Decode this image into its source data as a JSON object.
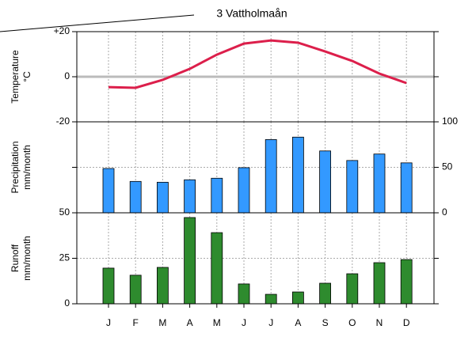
{
  "chart_data": [
    {
      "type": "line",
      "title": "3 Vattholmaån",
      "ylabel": [
        "Temperature",
        "°C"
      ],
      "color": "#dc1f4b",
      "values": [
        -4.6,
        -4.9,
        -1.4,
        3.5,
        9.8,
        14.7,
        16.1,
        15.1,
        11.2,
        7.0,
        1.4,
        -2.8
      ],
      "ylim": [
        -20,
        20
      ],
      "yticks": [
        -20,
        0,
        {
          "value": 20,
          "label": "+20"
        }
      ],
      "ytick_side": "left",
      "zero_line": true,
      "grid": true
    },
    {
      "type": "bar",
      "ylabel": [
        "Precipitation",
        "mm/month"
      ],
      "color": "#3399ff",
      "values": [
        48.7,
        34.5,
        33.6,
        36.3,
        38.0,
        49.6,
        80.5,
        83.2,
        68.0,
        57.5,
        64.6,
        54.9
      ],
      "ylim": [
        0,
        100
      ],
      "yticks": [
        0,
        50,
        100
      ],
      "ytick_side": "right",
      "grid": true
    },
    {
      "type": "bar",
      "ylabel": [
        "Runoff",
        "mm/month"
      ],
      "color": "#2e8b2e",
      "categories": [
        "J",
        "F",
        "M",
        "A",
        "M",
        "J",
        "J",
        "A",
        "S",
        "O",
        "N",
        "D"
      ],
      "values": [
        19.6,
        15.7,
        20.0,
        47.4,
        39.1,
        10.9,
        5.2,
        6.5,
        11.3,
        16.5,
        22.6,
        24.3
      ],
      "ylim": [
        0,
        50
      ],
      "yticks": [
        0,
        25,
        50
      ],
      "ytick_side": "left",
      "grid": true
    }
  ]
}
